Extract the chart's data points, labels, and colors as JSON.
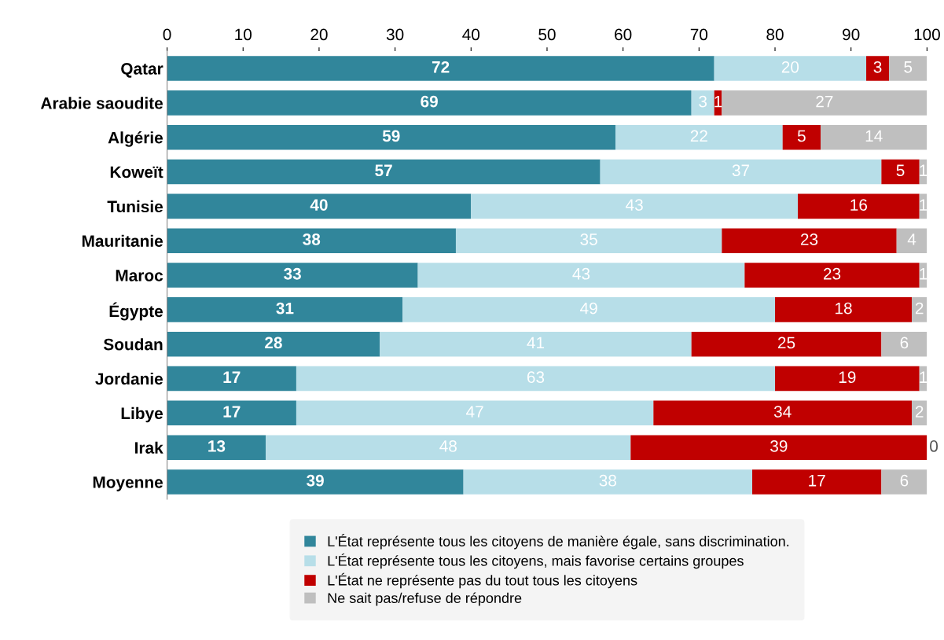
{
  "chart_data": {
    "type": "bar",
    "orientation": "horizontal",
    "stacked": true,
    "data_labels": true,
    "grid": false,
    "legend": "bottom",
    "categories": [
      "Qatar",
      "Arabie saoudite",
      "Algérie",
      "Koweït",
      "Tunisie",
      "Mauritanie",
      "Maroc",
      "Égypte",
      "Soudan",
      "Jordanie",
      "Libye",
      "Irak",
      "Moyenne"
    ],
    "series": [
      {
        "name": "L'État représente tous les citoyens de manière égale, sans discrimination.",
        "color": "#31869b",
        "values": [
          72,
          69,
          59,
          57,
          40,
          38,
          33,
          31,
          28,
          17,
          17,
          13,
          39
        ]
      },
      {
        "name": "L'État représente tous les citoyens, mais favorise certains groupes",
        "color": "#b7dee8",
        "values": [
          20,
          3,
          22,
          37,
          43,
          35,
          43,
          49,
          41,
          63,
          47,
          48,
          38
        ]
      },
      {
        "name": "L'État ne représente pas du tout tous les citoyens",
        "color": "#c00000",
        "values": [
          3,
          1,
          5,
          5,
          16,
          23,
          23,
          18,
          25,
          19,
          34,
          39,
          17
        ]
      },
      {
        "name": "Ne sait pas/refuse de répondre",
        "color": "#bfbfbf",
        "values": [
          5,
          27,
          14,
          1,
          1,
          4,
          1,
          2,
          6,
          1,
          2,
          0,
          6
        ]
      }
    ],
    "xlim": [
      0,
      100
    ],
    "xticks": [
      0,
      10,
      20,
      30,
      40,
      50,
      60,
      70,
      80,
      90,
      100
    ]
  }
}
